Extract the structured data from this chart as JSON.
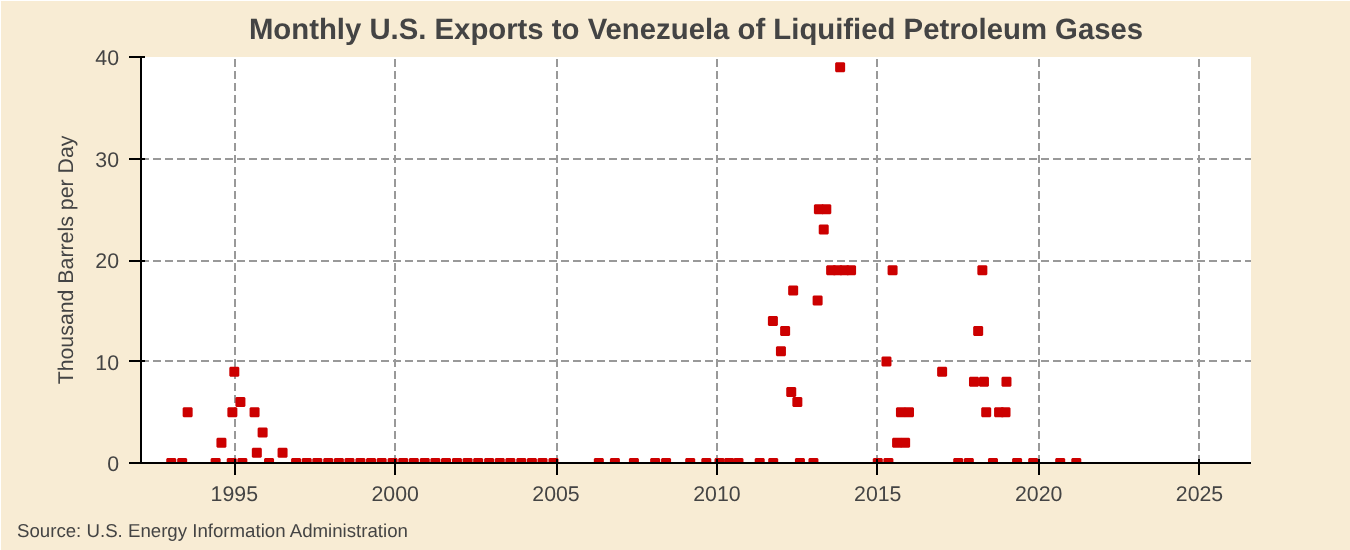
{
  "chart_data": {
    "type": "scatter",
    "title": "Monthly U.S. Exports to Venezuela of Liquified Petroleum Gases",
    "ylabel": "Thousand Barrels per Day",
    "x": [
      1993.55,
      1994.6,
      1994.94,
      1995.0,
      1995.19,
      1995.63,
      1995.7,
      1995.88,
      1996.5,
      2011.74,
      2011.99,
      2012.12,
      2012.37,
      2012.31,
      2012.5,
      2013.13,
      2013.17,
      2013.4,
      2013.32,
      2013.83,
      2013.55,
      2013.75,
      2013.96,
      2014.17,
      2015.27,
      2015.46,
      2015.72,
      2015.97,
      2015.6,
      2015.85,
      2017.0,
      2017.99,
      2018.3,
      2018.12,
      2018.25,
      2018.37,
      2018.77,
      2018.97,
      2019.0,
      1993.04,
      1993.38,
      1994.42,
      1994.92,
      1995.25,
      1996.08,
      1996.92,
      1997.25,
      1997.58,
      1997.92,
      1998.25,
      1998.58,
      1998.92,
      1999.25,
      1999.58,
      1999.92,
      2000.25,
      2000.58,
      2000.92,
      2001.25,
      2001.58,
      2001.92,
      2002.25,
      2002.58,
      2002.92,
      2003.25,
      2003.58,
      2003.92,
      2004.25,
      2004.58,
      2004.92,
      2006.33,
      2006.83,
      2007.42,
      2008.08,
      2008.42,
      2009.17,
      2009.67,
      2010.08,
      2010.38,
      2010.67,
      2011.33,
      2011.75,
      2012.58,
      2013.0,
      2015.0,
      2015.33,
      2017.5,
      2017.83,
      2018.58,
      2019.33,
      2019.83,
      2020.67,
      2021.17
    ],
    "series": [
      {
        "color": "#cc0000",
        "values": [
          5,
          2,
          5,
          9,
          6,
          5,
          1,
          3,
          1,
          14,
          11,
          13,
          17,
          7,
          6,
          16,
          25,
          25,
          23,
          39,
          19,
          19,
          19,
          19,
          10,
          19,
          5,
          5,
          2,
          2,
          9,
          8,
          8,
          13,
          19,
          5,
          5,
          5,
          8,
          0,
          0,
          0,
          0,
          0,
          0,
          0,
          0,
          0,
          0,
          0,
          0,
          0,
          0,
          0,
          0,
          0,
          0,
          0,
          0,
          0,
          0,
          0,
          0,
          0,
          0,
          0,
          0,
          0,
          0,
          0,
          0,
          0,
          0,
          0,
          0,
          0,
          0,
          0,
          0,
          0,
          0,
          0,
          0,
          0,
          0,
          0,
          0,
          0,
          0,
          0,
          0,
          0,
          0
        ]
      }
    ],
    "xlim": [
      1992.1,
      2026.6
    ],
    "ylim": [
      0,
      40
    ],
    "xticks": [
      1995,
      2000,
      2005,
      2010,
      2015,
      2020,
      2025
    ],
    "yticks": [
      0,
      10,
      20,
      30,
      40
    ],
    "grid": true,
    "marker": "square",
    "annotations": [
      "Source: U.S. Energy Information Administration"
    ]
  }
}
